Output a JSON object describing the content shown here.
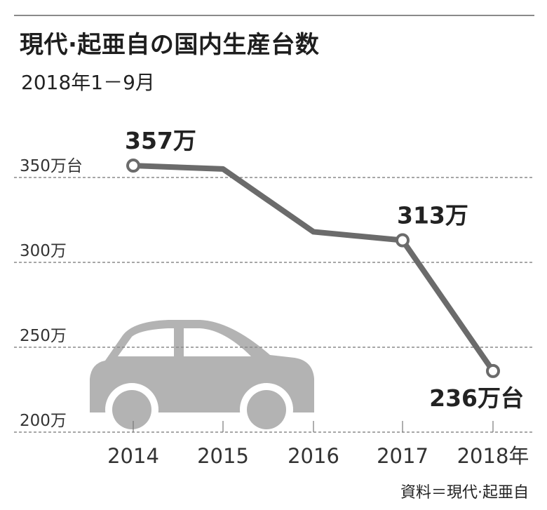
{
  "header": {
    "title": "現代·起亜自の国内生産台数",
    "subtitle": "2018年1－9月"
  },
  "source": "資料＝現代·起亜自",
  "chart_data": {
    "type": "line",
    "categories": [
      "2014",
      "2015",
      "2016",
      "2017",
      "2018年"
    ],
    "values": [
      357,
      355,
      318,
      313,
      236
    ],
    "unit": "万台",
    "ylim": [
      200,
      360
    ],
    "yticks": [
      {
        "value": 350,
        "label": "350万台"
      },
      {
        "value": 300,
        "label": "300万"
      },
      {
        "value": 250,
        "label": "250万"
      },
      {
        "value": 200,
        "label": "200万"
      }
    ],
    "markers": [
      0,
      3,
      4
    ],
    "data_labels": [
      {
        "index": 0,
        "text": "357万"
      },
      {
        "index": 3,
        "text": "313万"
      },
      {
        "index": 4,
        "text": "236万台"
      }
    ],
    "grid": "horizontal dashed",
    "colors": {
      "line": "#6b6b6b",
      "marker_fill": "#ffffff",
      "car": "#b3b3b3",
      "grid": "#8a8a8a"
    },
    "icon": "car-icon"
  }
}
